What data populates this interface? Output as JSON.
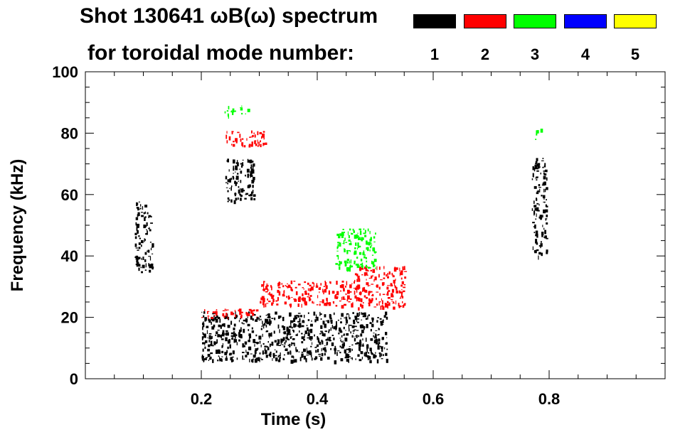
{
  "chart_data": {
    "type": "heatmap",
    "title": "Shot 130641 ωB(ω) spectrum",
    "subtitle": "for toroidal mode number:",
    "xlabel": "Time (s)",
    "ylabel": "Frequency (kHz)",
    "xlim": [
      0.0,
      1.0
    ],
    "ylim": [
      0,
      100
    ],
    "x_ticks": [
      0.2,
      0.4,
      0.6,
      0.8
    ],
    "y_ticks": [
      0,
      20,
      40,
      60,
      80,
      100
    ],
    "legend": [
      {
        "n": "1",
        "color": "#000000"
      },
      {
        "n": "2",
        "color": "#ff0000"
      },
      {
        "n": "3",
        "color": "#00ff00"
      },
      {
        "n": "4",
        "color": "#0000ff"
      },
      {
        "n": "5",
        "color": "#ffff00"
      }
    ],
    "features": [
      {
        "mode": "1",
        "t": [
          0.085,
          0.115
        ],
        "f": [
          35,
          58
        ]
      },
      {
        "mode": "1",
        "t": [
          0.24,
          0.29
        ],
        "f": [
          58,
          72
        ]
      },
      {
        "mode": "1",
        "t": [
          0.2,
          0.52
        ],
        "f": [
          6,
          22
        ]
      },
      {
        "mode": "1",
        "t": [
          0.77,
          0.795
        ],
        "f": [
          40,
          72
        ]
      },
      {
        "mode": "2",
        "t": [
          0.24,
          0.31
        ],
        "f": [
          76,
          81
        ]
      },
      {
        "mode": "2",
        "t": [
          0.2,
          0.3
        ],
        "f": [
          20,
          23
        ]
      },
      {
        "mode": "2",
        "t": [
          0.3,
          0.46
        ],
        "f": [
          24,
          32
        ]
      },
      {
        "mode": "2",
        "t": [
          0.46,
          0.55
        ],
        "f": [
          23,
          37
        ]
      },
      {
        "mode": "3",
        "t": [
          0.24,
          0.28
        ],
        "f": [
          86,
          89
        ]
      },
      {
        "mode": "3",
        "t": [
          0.43,
          0.5
        ],
        "f": [
          36,
          49
        ]
      },
      {
        "mode": "3",
        "t": [
          0.775,
          0.785
        ],
        "f": [
          78,
          82
        ]
      }
    ]
  }
}
